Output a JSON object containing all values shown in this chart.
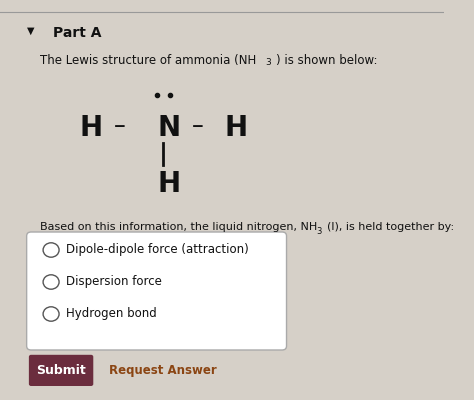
{
  "background_color": "#d6d0c8",
  "header_line_color": "#999999",
  "part_a_text": "Part A",
  "intro_text_1": "The Lewis structure of ammonia (NH",
  "intro_text_2": ") is shown below:",
  "question_text_1": "Based on this information, the liquid nitrogen, NH",
  "question_text_2": "(l), is held together by:",
  "options": [
    "Dipole-dipole force (attraction)",
    "Dispersion force",
    "Hydrogen bond"
  ],
  "submit_text": "Submit",
  "submit_bg": "#6b2d3e",
  "submit_text_color": "#ffffff",
  "request_answer_text": "Request Answer",
  "request_answer_color": "#8b4513",
  "options_box_color": "#ffffff",
  "options_box_border": "#aaaaaa",
  "text_color": "#111111",
  "circle_color": "#555555"
}
